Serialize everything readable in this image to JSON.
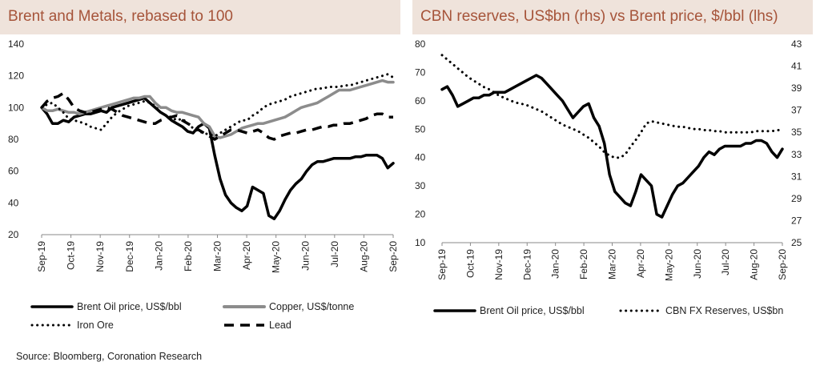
{
  "left_title": "Brent and Metals, rebased to 100",
  "right_title": "CBN reserves, US$bn (rhs) vs Brent price, $/bbl (lhs)",
  "source": "Source: Bloomberg, Coronation Research",
  "chart_data": [
    {
      "type": "line",
      "title": "Brent and Metals, rebased to 100",
      "ylim": [
        20,
        140
      ],
      "y_ticks": [
        "140",
        "120",
        "100",
        "80",
        "60",
        "40",
        "20"
      ],
      "x_ticks": [
        "Sep-19",
        "Oct-19",
        "Nov-19",
        "Dec-19",
        "Jan-20",
        "Feb-20",
        "Mar-20",
        "Apr-20",
        "May-20",
        "Jun-20",
        "Jul-20",
        "Aug-20",
        "Sep-20"
      ],
      "legend_position": "bottom",
      "series": [
        {
          "name": "Brent Oil price, US$/bbl",
          "style": "solid",
          "color": "#000000",
          "values": [
            100,
            96,
            90,
            90,
            92,
            91,
            94,
            95,
            96,
            96,
            97,
            98,
            97,
            100,
            101,
            102,
            103,
            104,
            105,
            106,
            103,
            100,
            97,
            95,
            92,
            90,
            88,
            85,
            84,
            88,
            90,
            87,
            70,
            55,
            45,
            40,
            37,
            35,
            38,
            50,
            48,
            46,
            32,
            30,
            35,
            42,
            48,
            52,
            55,
            60,
            64,
            66,
            66,
            67,
            68,
            68,
            68,
            68,
            69,
            69,
            70,
            70,
            70,
            68,
            62,
            65
          ]
        },
        {
          "name": "Copper, US$/tonne",
          "style": "solid",
          "color": "#8c8c8c",
          "values": [
            100,
            98,
            98,
            99,
            98,
            97,
            97,
            96,
            97,
            98,
            99,
            100,
            101,
            102,
            103,
            104,
            105,
            106,
            106,
            107,
            107,
            103,
            100,
            100,
            98,
            97,
            97,
            96,
            95,
            94,
            90,
            88,
            82,
            81,
            82,
            83,
            85,
            87,
            88,
            89,
            90,
            90,
            91,
            92,
            93,
            94,
            96,
            98,
            100,
            101,
            102,
            103,
            105,
            107,
            109,
            111,
            111,
            111,
            112,
            113,
            114,
            115,
            116,
            117,
            116,
            116
          ]
        },
        {
          "name": "Iron Ore",
          "style": "dotted",
          "color": "#000000",
          "values": [
            100,
            102,
            103,
            100,
            97,
            93,
            92,
            91,
            90,
            88,
            87,
            86,
            90,
            94,
            97,
            99,
            101,
            102,
            103,
            104,
            103,
            101,
            97,
            95,
            94,
            92,
            93,
            90,
            87,
            85,
            84,
            83,
            82,
            84,
            86,
            88,
            90,
            92,
            92,
            95,
            97,
            100,
            102,
            103,
            104,
            105,
            107,
            108,
            109,
            110,
            111,
            112,
            112,
            113,
            113,
            113,
            114,
            114,
            115,
            116,
            117,
            118,
            119,
            120,
            121,
            119
          ]
        },
        {
          "name": "Lead",
          "style": "dashed",
          "color": "#000000",
          "values": [
            100,
            104,
            106,
            107,
            109,
            105,
            100,
            98,
            97,
            97,
            98,
            99,
            100,
            99,
            97,
            95,
            94,
            93,
            92,
            91,
            90,
            90,
            92,
            93,
            94,
            95,
            92,
            90,
            88,
            86,
            84,
            82,
            80,
            82,
            84,
            86,
            86,
            85,
            84,
            85,
            86,
            84,
            81,
            80,
            82,
            83,
            84,
            84,
            85,
            86,
            86,
            87,
            88,
            88,
            89,
            89,
            90,
            90,
            91,
            92,
            93,
            95,
            96,
            96,
            94,
            94
          ]
        }
      ]
    },
    {
      "type": "line",
      "title": "CBN reserves, US$bn (rhs) vs Brent price, $/bbl (lhs)",
      "ylim": [
        10,
        80
      ],
      "y2lim": [
        25,
        43
      ],
      "y_ticks": [
        "80",
        "70",
        "60",
        "50",
        "40",
        "30",
        "20",
        "10"
      ],
      "y2_ticks": [
        "43",
        "41",
        "39",
        "37",
        "35",
        "33",
        "31",
        "29",
        "27",
        "25"
      ],
      "x_ticks": [
        "Sep-19",
        "Oct-19",
        "Nov-19",
        "Dec-19",
        "Jan-20",
        "Feb-20",
        "Mar-20",
        "Apr-20",
        "May-20",
        "Jun-20",
        "Jul-20",
        "Aug-20",
        "Sep-20"
      ],
      "legend_position": "bottom",
      "series": [
        {
          "name": "Brent Oil price, US$/bbl",
          "axis": "left",
          "style": "solid",
          "color": "#000000",
          "values": [
            64,
            65,
            62,
            58,
            59,
            60,
            61,
            61,
            62,
            62,
            63,
            63,
            63,
            64,
            65,
            66,
            67,
            68,
            69,
            68,
            66,
            64,
            62,
            60,
            57,
            54,
            56,
            58,
            59,
            54,
            51,
            45,
            34,
            28,
            26,
            24,
            23,
            28,
            34,
            32,
            30,
            20,
            19,
            23,
            27,
            30,
            31,
            33,
            35,
            37,
            40,
            42,
            41,
            43,
            44,
            44,
            44,
            44,
            45,
            45,
            46,
            46,
            45,
            42,
            40,
            43
          ]
        },
        {
          "name": "CBN FX Reserves, US$bn",
          "axis": "right",
          "style": "dotted",
          "color": "#000000",
          "values": [
            42,
            41.6,
            41.2,
            40.8,
            40.4,
            40,
            39.7,
            39.4,
            39.1,
            38.9,
            38.6,
            38.3,
            38.1,
            37.9,
            37.7,
            37.6,
            37.5,
            37.3,
            37.1,
            36.9,
            36.6,
            36.3,
            36,
            35.7,
            35.5,
            35.3,
            35.1,
            34.8,
            34.5,
            34.1,
            33.7,
            33.2,
            32.9,
            32.7,
            32.7,
            33,
            33.7,
            34.3,
            35,
            35.8,
            36,
            35.9,
            35.8,
            35.7,
            35.6,
            35.5,
            35.5,
            35.4,
            35.3,
            35.3,
            35.2,
            35.2,
            35.1,
            35.1,
            35,
            35,
            35,
            35,
            35,
            35,
            35.1,
            35.1,
            35.1,
            35.1,
            35.2,
            35.2
          ]
        }
      ]
    }
  ]
}
